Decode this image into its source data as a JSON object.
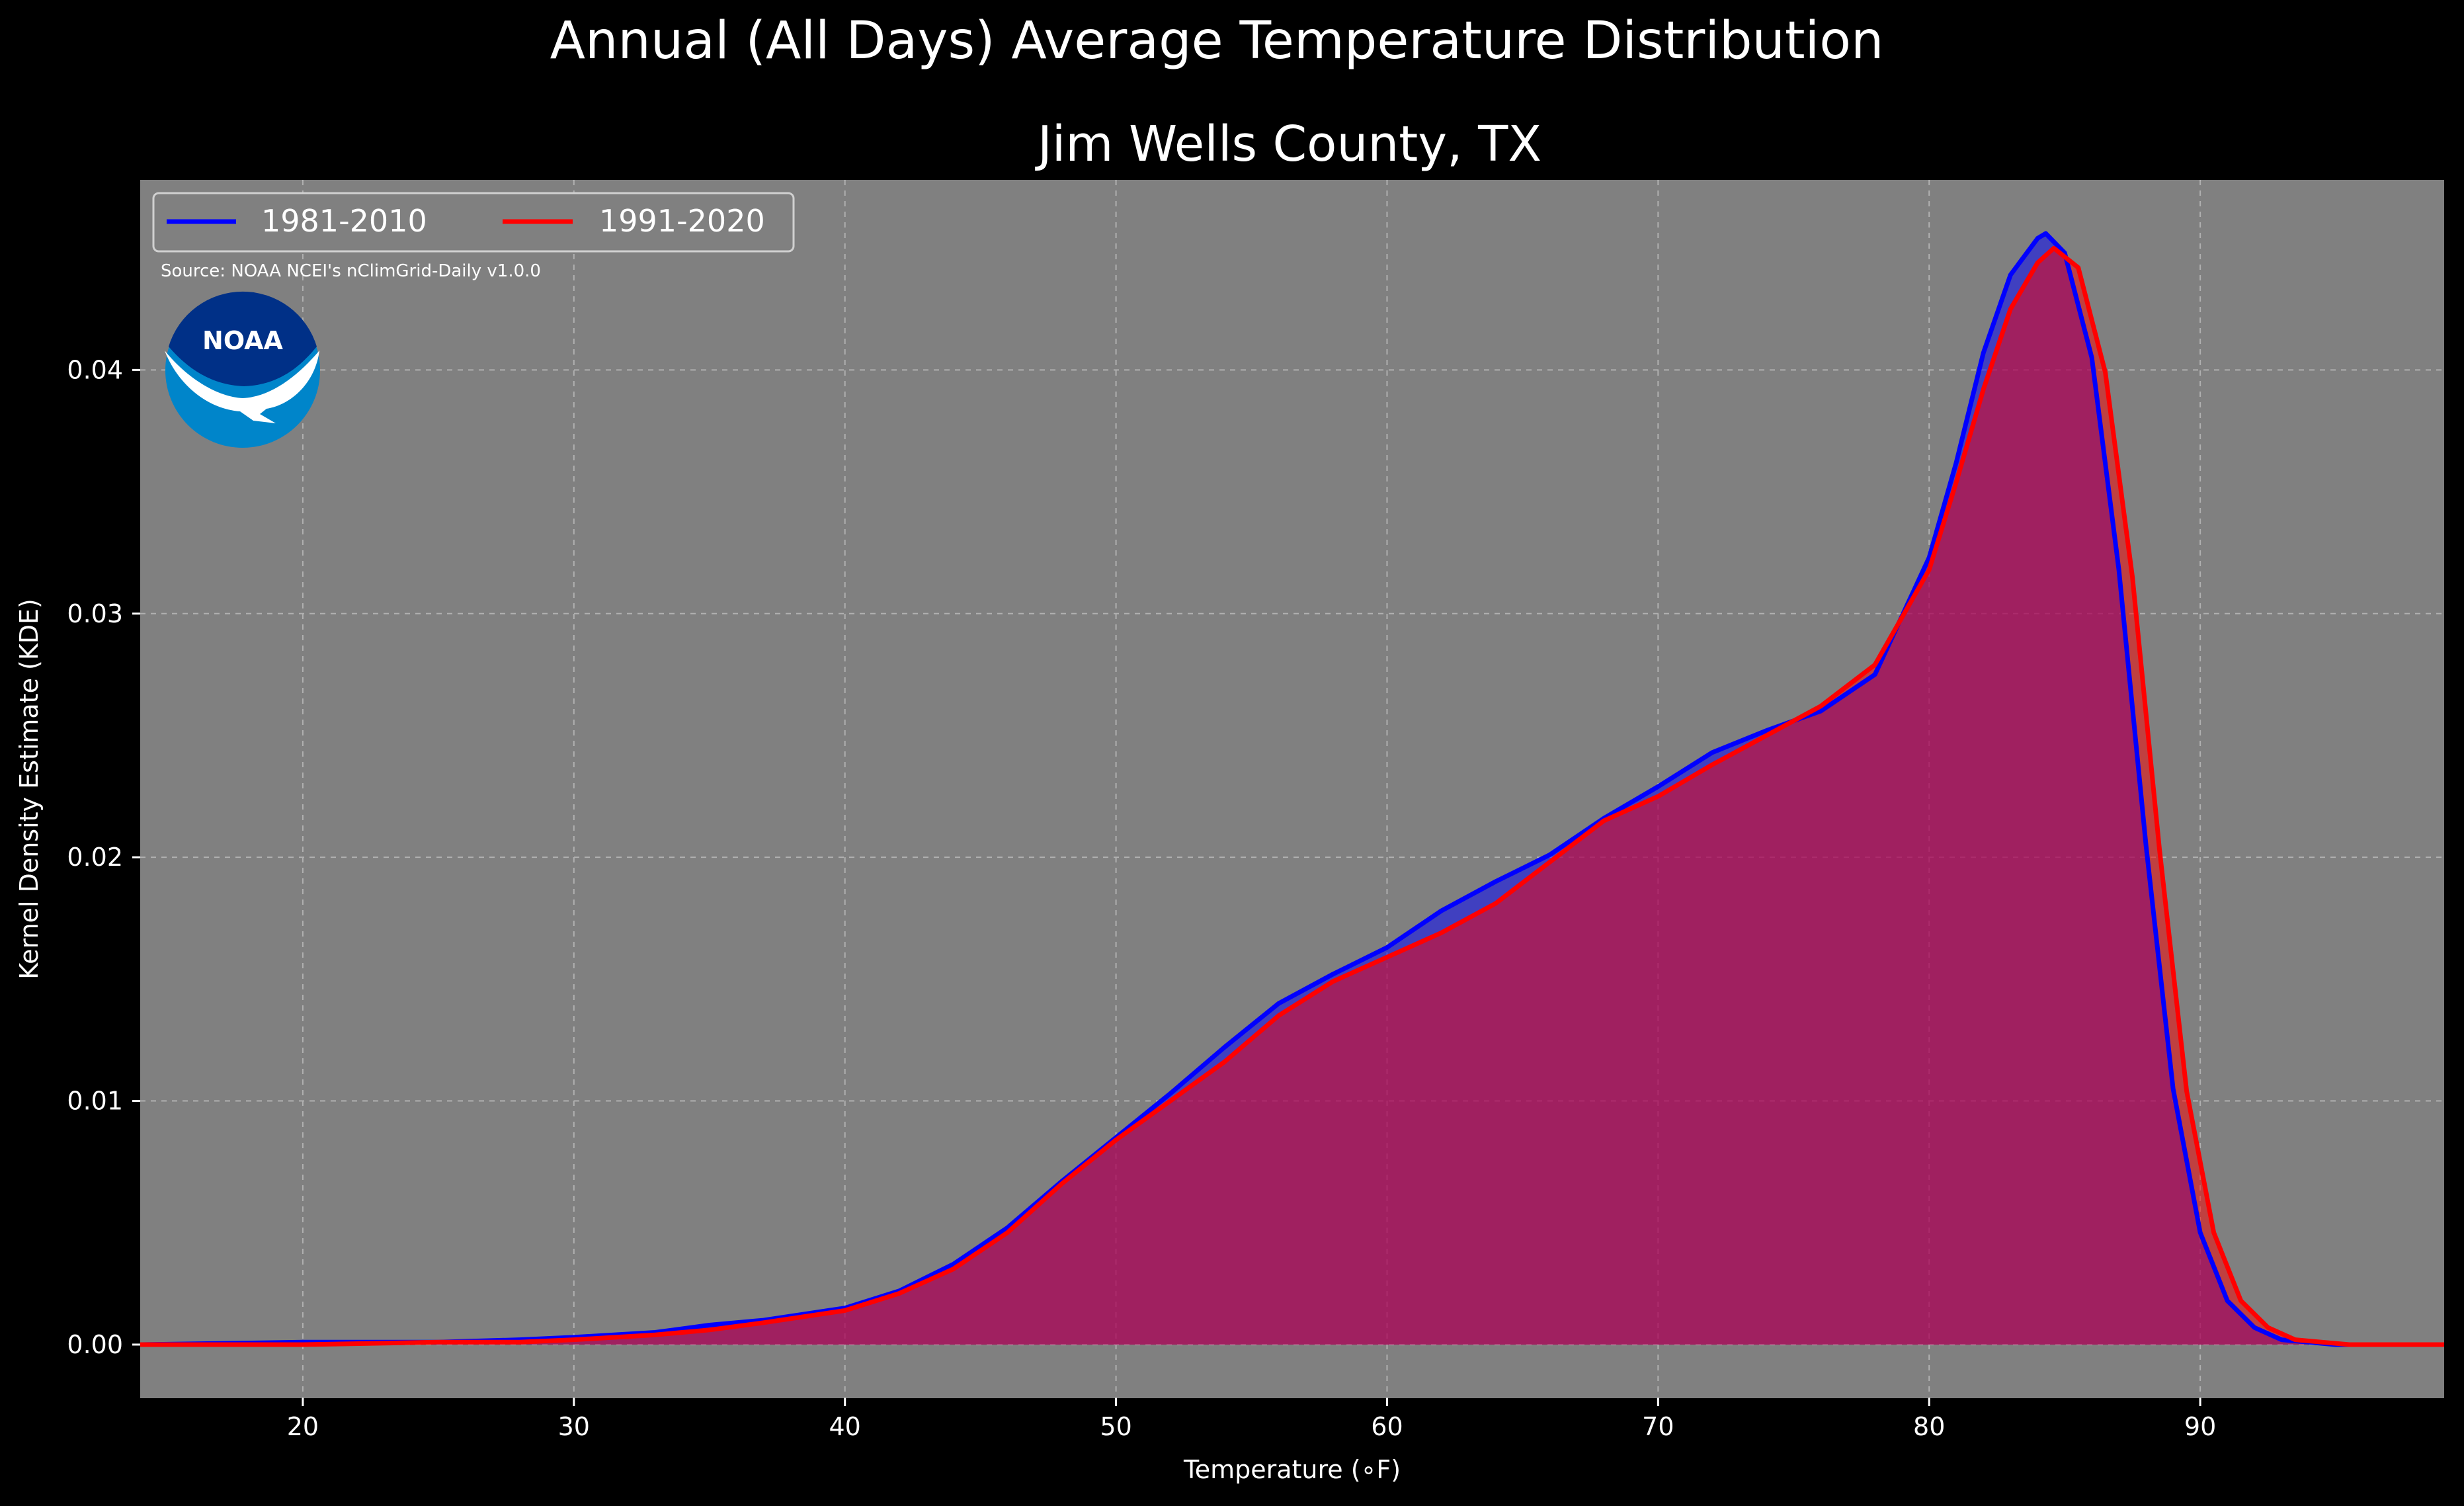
{
  "chart_data": {
    "type": "area",
    "suptitle": "Annual (All Days) Average Temperature Distribution",
    "title": "Jim Wells County, TX",
    "xlabel": "Temperature (∘F)",
    "ylabel": "Kernel Density Estimate (KDE)",
    "xlim": [
      14,
      99
    ],
    "ylim": [
      -0.0022,
      0.0478
    ],
    "xticks": [
      20,
      30,
      40,
      50,
      60,
      70,
      80,
      90
    ],
    "yticks": [
      0.0,
      0.01,
      0.02,
      0.03,
      0.04
    ],
    "ytick_labels": [
      "0.00",
      "0.01",
      "0.02",
      "0.03",
      "0.04"
    ],
    "grid": true,
    "legend_position": "top-left",
    "source_text": "Source: NOAA NCEI's nClimGrid-Daily v1.0.0",
    "logo_text": "NOAA",
    "colors": {
      "background": "#000000",
      "plot_bg": "#808080",
      "text": "#ffffff",
      "grid": "#b0b0b0",
      "logo_blue": "#0085ca",
      "logo_navy": "#003087"
    },
    "series": [
      {
        "name": "1981-2010",
        "color": "#0000ff",
        "fill": "#0000ff",
        "x": [
          14,
          20,
          25,
          28,
          30,
          33,
          35,
          37,
          40,
          42,
          44,
          46,
          48,
          50,
          52,
          54,
          56,
          58,
          60,
          62,
          64,
          66,
          68,
          70,
          72,
          74,
          76,
          78,
          80,
          81,
          82,
          83,
          84,
          84.3,
          85,
          86,
          87,
          88,
          89,
          90,
          91,
          92,
          93,
          94,
          95,
          97,
          99
        ],
        "y": [
          0.0,
          0.0001,
          0.0001,
          0.0002,
          0.0003,
          0.0005,
          0.0008,
          0.001,
          0.0015,
          0.0022,
          0.0033,
          0.0048,
          0.0067,
          0.0085,
          0.0103,
          0.0122,
          0.014,
          0.0152,
          0.0163,
          0.0178,
          0.019,
          0.0201,
          0.0216,
          0.0229,
          0.0243,
          0.0252,
          0.026,
          0.0275,
          0.0323,
          0.0362,
          0.0407,
          0.0439,
          0.0454,
          0.0456,
          0.0448,
          0.0405,
          0.0318,
          0.0205,
          0.0105,
          0.0046,
          0.0018,
          0.0007,
          0.0002,
          0.0001,
          0.0,
          0.0,
          0.0
        ]
      },
      {
        "name": "1991-2020",
        "color": "#ff0000",
        "fill": "#ff0000",
        "x": [
          14,
          20,
          25,
          28,
          30,
          33,
          35,
          37,
          40,
          42,
          44,
          46,
          48,
          50,
          52,
          54,
          56,
          58,
          60,
          62,
          64,
          66,
          68,
          70,
          72,
          74,
          76,
          78,
          80,
          81,
          82,
          83,
          84,
          84.6,
          85.5,
          86.5,
          87.5,
          88.5,
          89.5,
          90.5,
          91.5,
          92.5,
          93.5,
          94.5,
          95.5,
          97,
          99
        ],
        "y": [
          0.0,
          0.0,
          0.0001,
          0.0001,
          0.0002,
          0.0004,
          0.0006,
          0.0009,
          0.0014,
          0.0021,
          0.0031,
          0.0046,
          0.0066,
          0.0084,
          0.01,
          0.0116,
          0.0135,
          0.0149,
          0.0159,
          0.0169,
          0.0181,
          0.0198,
          0.0215,
          0.0225,
          0.0238,
          0.025,
          0.0262,
          0.0279,
          0.0318,
          0.0354,
          0.0392,
          0.0425,
          0.0444,
          0.045,
          0.0442,
          0.0399,
          0.0315,
          0.0203,
          0.0104,
          0.0046,
          0.0018,
          0.0007,
          0.0002,
          0.0001,
          0.0,
          0.0,
          0.0
        ]
      }
    ]
  }
}
